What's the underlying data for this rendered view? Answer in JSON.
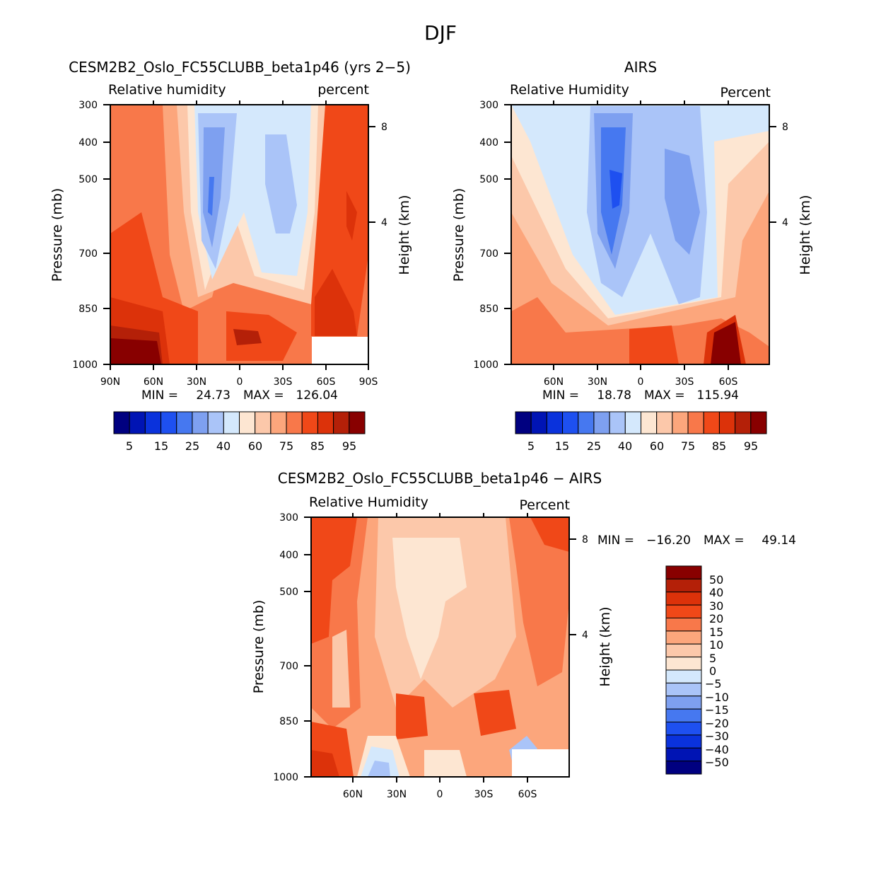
{
  "figure": {
    "title": "DJF"
  },
  "panels": [
    {
      "title": "CESM2B2_Oslo_FC55CLUBB_beta1p46 (yrs 2−5)",
      "left_label": "Relative  humidity",
      "right_label": "percent",
      "min_label": "MIN  =",
      "min_value": "24.73",
      "max_label": "MAX  =",
      "max_value": "126.04"
    },
    {
      "title": "AIRS",
      "left_label": "Relative  Humidity",
      "right_label": "Percent",
      "min_label": "MIN  =",
      "min_value": "18.78",
      "max_label": "MAX  =",
      "max_value": "115.94"
    },
    {
      "title": "CESM2B2_Oslo_FC55CLUBB_beta1p46  −  AIRS",
      "left_label": "Relative  Humidity",
      "right_label": "Percent",
      "min_label": "MIN  =",
      "min_value": "−16.20",
      "max_label": "MAX  =",
      "max_value": "49.14"
    }
  ],
  "chart_data": [
    {
      "type": "heatmap",
      "title": "CESM2B2_Oslo_FC55CLUBB_beta1p46 (yrs 2-5)",
      "ylabel": "Pressure  (mb)",
      "y2label": "Height  (km)",
      "y_ticks": [
        "300",
        "400",
        "500",
        "700",
        "850",
        "1000"
      ],
      "y2_ticks": [
        "8",
        "4"
      ],
      "x_ticks": [
        "90N",
        "60N",
        "30N",
        "0",
        "30S",
        "60S",
        "90S"
      ],
      "x_range": [
        "90N",
        "90S"
      ],
      "y_range_mb": [
        1000,
        300
      ],
      "min": 24.73,
      "max": 126.04,
      "colorbar_labels": [
        "5",
        "15",
        "25",
        "40",
        "60",
        "75",
        "85",
        "95"
      ]
    },
    {
      "type": "heatmap",
      "title": "AIRS",
      "ylabel": "Pressure  (mb)",
      "y2label": "Height  (km)",
      "y_ticks": [
        "300",
        "400",
        "500",
        "700",
        "850",
        "1000"
      ],
      "y2_ticks": [
        "8",
        "4"
      ],
      "x_ticks": [
        "60N",
        "30N",
        "0",
        "30S",
        "60S"
      ],
      "y_range_mb": [
        1000,
        300
      ],
      "min": 18.78,
      "max": 115.94,
      "colorbar_labels": [
        "5",
        "15",
        "25",
        "40",
        "60",
        "75",
        "85",
        "95"
      ]
    },
    {
      "type": "heatmap",
      "title": "CESM2B2_Oslo_FC55CLUBB_beta1p46 - AIRS",
      "ylabel": "Pressure  (mb)",
      "y2label": "Height  (km)",
      "y_ticks": [
        "300",
        "400",
        "500",
        "700",
        "850",
        "1000"
      ],
      "y2_ticks": [
        "8",
        "4"
      ],
      "x_ticks": [
        "60N",
        "30N",
        "0",
        "30S",
        "60S"
      ],
      "y_range_mb": [
        1000,
        300
      ],
      "min": -16.2,
      "max": 49.14,
      "colorbar_labels": [
        "50",
        "40",
        "30",
        "20",
        "15",
        "10",
        "5",
        "0",
        "−5",
        "−10",
        "−15",
        "−20",
        "−30",
        "−40",
        "−50"
      ]
    }
  ],
  "colors": {
    "seq": [
      "#000080",
      "#0014b4",
      "#0a32dc",
      "#1e50f0",
      "#4678f0",
      "#7ea0f0",
      "#aac4f8",
      "#d4e8fc",
      "#fde6d2",
      "#fcc8aa",
      "#fca67c",
      "#f8784a",
      "#f04818",
      "#dc320a",
      "#b42008",
      "#880000"
    ],
    "div_top_to_bottom": [
      "#880000",
      "#b42008",
      "#dc320a",
      "#f04818",
      "#f8784a",
      "#fca67c",
      "#fcc8aa",
      "#fde6d2",
      "#d4e8fc",
      "#aac4f8",
      "#7ea0f0",
      "#4678f0",
      "#1e50f0",
      "#0a32dc",
      "#0014b4",
      "#000080"
    ]
  }
}
